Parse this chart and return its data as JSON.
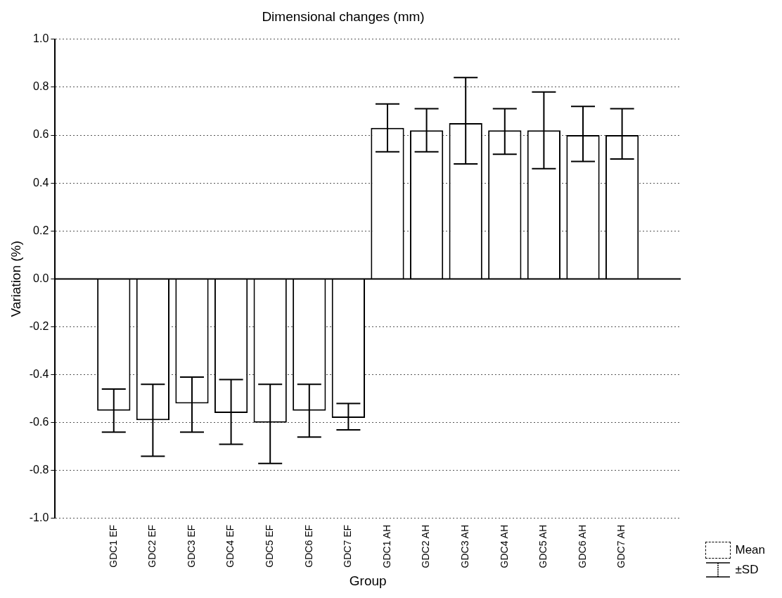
{
  "chart_data": {
    "type": "bar",
    "title": "Dimensional changes (mm)",
    "xlabel": "Group",
    "ylabel": "Variation (%)",
    "categories": [
      null,
      "GDC1 EF",
      "GDC2 EF",
      "GDC3 EF",
      "GDC4 EF",
      "GDC5 EF",
      "GDC6 EF",
      "GDC7 EF",
      "GDC1 AH",
      "GDC2 AH",
      "GDC3 AH",
      "GDC4 AH",
      "GDC5 AH",
      "GDC6 AH",
      "GDC7 AH",
      null
    ],
    "series": [
      {
        "name": "Mean",
        "color": "#ffffff",
        "values": [
          null,
          -0.55,
          -0.59,
          -0.52,
          -0.56,
          -0.6,
          -0.55,
          -0.58,
          0.63,
          0.62,
          0.65,
          0.62,
          0.62,
          0.6,
          0.6,
          null
        ],
        "errors": [
          null,
          [
            -0.64,
            -0.46
          ],
          [
            -0.74,
            -0.44
          ],
          [
            -0.64,
            -0.41
          ],
          [
            -0.69,
            -0.42
          ],
          [
            -0.77,
            -0.44
          ],
          [
            -0.66,
            -0.44
          ],
          [
            -0.63,
            -0.52
          ],
          [
            0.53,
            0.73
          ],
          [
            0.53,
            0.71
          ],
          [
            0.48,
            0.84
          ],
          [
            0.52,
            0.71
          ],
          [
            0.46,
            0.78
          ],
          [
            0.49,
            0.72
          ],
          [
            0.5,
            0.71
          ],
          null
        ]
      }
    ],
    "annotations": [
      "±SD"
    ],
    "ylim": [
      -1,
      1
    ],
    "yticks": [
      {
        "value": -1,
        "label": "-1.0"
      },
      {
        "value": -0.8,
        "label": "-0.8"
      },
      {
        "value": -0.6,
        "label": "-0.6"
      },
      {
        "value": -0.4,
        "label": "-0.4"
      },
      {
        "value": -0.2,
        "label": "-0.2"
      },
      {
        "value": 0,
        "label": "0.0"
      },
      {
        "value": 0.2,
        "label": "0.2"
      },
      {
        "value": 0.4,
        "label": "0.4"
      },
      {
        "value": 0.6,
        "label": "0.6"
      },
      {
        "value": 0.8,
        "label": "0.8"
      },
      {
        "value": 1,
        "label": "1.0"
      }
    ],
    "grid": "y",
    "legend": "bottom right"
  }
}
